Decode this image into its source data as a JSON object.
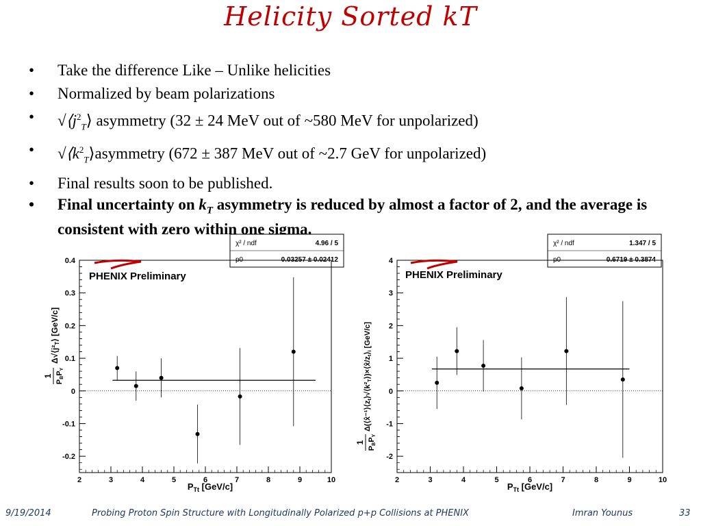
{
  "slide": {
    "title": "Helicity Sorted kT",
    "bullets": [
      {
        "text": "Take the difference Like – Unlike helicities"
      },
      {
        "text": "Normalized by beam polarizations"
      },
      {
        "prefix": "√⟨j",
        "sup": "2",
        "sub": "T",
        "suffix": "⟩ asymmetry (32 ± 24 MeV out of ~580 MeV for unpolarized)"
      },
      {
        "prefix": "√⟨k",
        "sup": "2",
        "sub": "T",
        "suffix": "⟩asymmetry (672 ± 387 MeV out of ~2.7 GeV for unpolarized)"
      },
      {
        "text": "Final results soon to be published."
      },
      {
        "pre": "Final uncertainty on ",
        "var": "k",
        "varsub": "T",
        "post": " asymmetry is reduced by almost a factor of 2, and the average is consistent with zero within one sigma."
      }
    ]
  },
  "footer": {
    "date": "9/19/2014",
    "talk": "Probing Proton Spin Structure with Longitudinally Polarized p+p Collisions at PHENIX",
    "author": "Imran Younus",
    "page": "33"
  },
  "chart_data": [
    {
      "type": "scatter",
      "xlabel": "P_Tt [GeV/c]",
      "ylabel": "1/(P_B P_Y) Δ√⟨j_T²⟩ [GeV/c]",
      "xlim": [
        2,
        10
      ],
      "ylim": [
        -0.25,
        0.4
      ],
      "xticks": [
        2,
        3,
        4,
        5,
        6,
        7,
        8,
        9,
        10
      ],
      "yticks": [
        -0.2,
        -0.1,
        0,
        0.1,
        0.2,
        0.3,
        0.4
      ],
      "ytick_labels": [
        "-0.2",
        "-0.1",
        "0",
        "0.1",
        "0.2",
        "0.3",
        "0.4"
      ],
      "logo": "PHENIX Preliminary",
      "fit": {
        "label_chi": "χ² / ndf",
        "value_chi": "4.96 / 5",
        "label_p0": "p0",
        "value_p0": "0.03257 ± 0.02412",
        "p0": 0.03257,
        "x_from": 3.05,
        "x_to": 9.5
      },
      "points": [
        {
          "x": 3.2,
          "y": 0.07,
          "err": 0.037
        },
        {
          "x": 3.8,
          "y": 0.015,
          "err": 0.045
        },
        {
          "x": 4.6,
          "y": 0.04,
          "err": 0.06
        },
        {
          "x": 5.75,
          "y": -0.132,
          "err": 0.09
        },
        {
          "x": 7.1,
          "y": -0.017,
          "err": 0.148
        },
        {
          "x": 8.8,
          "y": 0.12,
          "err": 0.228
        }
      ]
    },
    {
      "type": "scatter",
      "xlabel": "P_Tt [GeV/c]",
      "ylabel": "1/(P_B P_Y) Δ(⟨x̂⁻¹⟩⟨z_t⟩√⟨k_T²⟩)×⟨x̂/z_t⟩_i [GeV/c]",
      "xlim": [
        2,
        10
      ],
      "ylim": [
        -2.5,
        4
      ],
      "xticks": [
        2,
        3,
        4,
        5,
        6,
        7,
        8,
        9,
        10
      ],
      "yticks": [
        -2,
        -1,
        0,
        1,
        2,
        3,
        4
      ],
      "ytick_labels": [
        "-2",
        "-1",
        "0",
        "1",
        "2",
        "3",
        "4"
      ],
      "logo": "PHENIX Preliminary",
      "fit": {
        "label_chi": "χ² / ndf",
        "value_chi": "1.347 / 5",
        "label_p0": "p0",
        "value_p0": "0.6719 ± 0.3874",
        "p0": 0.6719,
        "x_from": 3.05,
        "x_to": 9.0
      },
      "points": [
        {
          "x": 3.2,
          "y": 0.25,
          "err": 0.8
        },
        {
          "x": 3.8,
          "y": 1.22,
          "err": 0.73
        },
        {
          "x": 4.6,
          "y": 0.77,
          "err": 0.79
        },
        {
          "x": 5.75,
          "y": 0.08,
          "err": 0.95
        },
        {
          "x": 7.1,
          "y": 1.22,
          "err": 1.65
        },
        {
          "x": 8.8,
          "y": 0.35,
          "err": 2.4
        }
      ]
    }
  ]
}
